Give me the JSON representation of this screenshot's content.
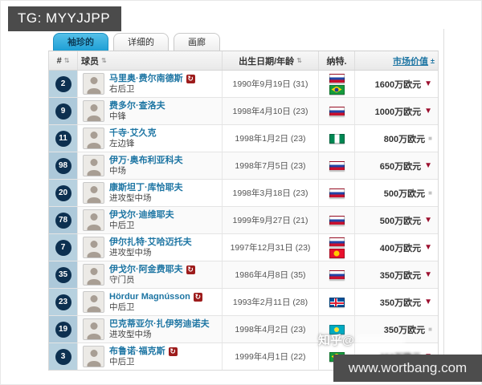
{
  "badge": {
    "text": "TG: MYYJJPP"
  },
  "footer": {
    "url": "www.wortbang.com"
  },
  "watermark": {
    "text": "知乎@"
  },
  "tabs": [
    {
      "label": "袖珍的",
      "active": true
    },
    {
      "label": "详细的",
      "active": false
    },
    {
      "label": "画廊",
      "active": false
    }
  ],
  "icons": {
    "sort": "⇅",
    "value_sort": "±",
    "trend_down": "▼",
    "trend_flat": "■",
    "badge": "↻"
  },
  "table": {
    "headers": {
      "number": "#",
      "player": "球员",
      "birth": "出生日期/年龄",
      "nationality": "纳特.",
      "value": "市场价值"
    },
    "rows": [
      {
        "number": "2",
        "name": "马里奥·费尔南德斯",
        "badge": true,
        "position": "右后卫",
        "birth": "1990年9月19日 (31)",
        "flags": [
          "ru",
          "br"
        ],
        "value": "1600万欧元",
        "trend": "down"
      },
      {
        "number": "9",
        "name": "费多尔·查洛夫",
        "badge": false,
        "position": "中锋",
        "birth": "1998年4月10日 (23)",
        "flags": [
          "ru"
        ],
        "value": "1000万欧元",
        "trend": "down"
      },
      {
        "number": "11",
        "name": "千寺·艾久克",
        "badge": false,
        "position": "左边锋",
        "birth": "1998年1月2日 (23)",
        "flags": [
          "ng"
        ],
        "value": "800万欧元",
        "trend": "flat"
      },
      {
        "number": "98",
        "name": "伊万·奥布利亚科夫",
        "badge": false,
        "position": "中场",
        "birth": "1998年7月5日 (23)",
        "flags": [
          "ru"
        ],
        "value": "650万欧元",
        "trend": "down"
      },
      {
        "number": "20",
        "name": "康斯坦丁·库恰耶夫",
        "badge": false,
        "position": "进攻型中场",
        "birth": "1998年3月18日 (23)",
        "flags": [
          "ru"
        ],
        "value": "500万欧元",
        "trend": "flat"
      },
      {
        "number": "78",
        "name": "伊戈尔·迪维耶夫",
        "badge": false,
        "position": "中后卫",
        "birth": "1999年9月27日 (21)",
        "flags": [
          "ru"
        ],
        "value": "500万欧元",
        "trend": "down"
      },
      {
        "number": "7",
        "name": "伊尔扎特·艾哈迈托夫",
        "badge": false,
        "position": "进攻型中场",
        "birth": "1997年12月31日 (23)",
        "flags": [
          "ru",
          "kg"
        ],
        "value": "400万欧元",
        "trend": "down"
      },
      {
        "number": "35",
        "name": "伊戈尔·阿金费耶夫",
        "badge": true,
        "position": "守门员",
        "birth": "1986年4月8日 (35)",
        "flags": [
          "ru"
        ],
        "value": "350万欧元",
        "trend": "down"
      },
      {
        "number": "23",
        "name": "Hördur Magnússon",
        "badge": true,
        "position": "中后卫",
        "birth": "1993年2月11日 (28)",
        "flags": [
          "is"
        ],
        "value": "350万欧元",
        "trend": "down"
      },
      {
        "number": "19",
        "name": "巴克蒂亚尔·扎伊努迪诺夫",
        "badge": false,
        "position": "进攻型中场",
        "birth": "1998年4月2日 (23)",
        "flags": [
          "kz"
        ],
        "value": "350万欧元",
        "trend": "flat"
      },
      {
        "number": "3",
        "name": "布鲁诺·福克斯",
        "badge": true,
        "position": "中后卫",
        "birth": "1999年4月1日 (22)",
        "flags": [
          "br"
        ],
        "value": "350万欧元",
        "trend": "down",
        "obscured": true
      }
    ]
  }
}
